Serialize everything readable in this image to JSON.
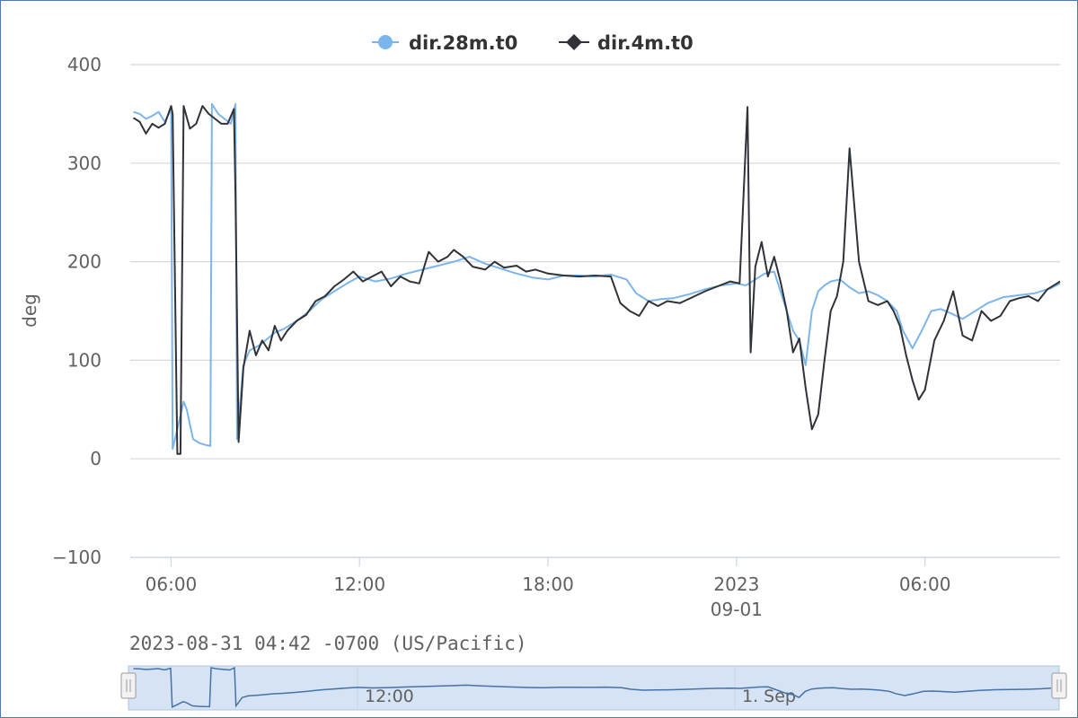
{
  "chart_data": {
    "type": "line",
    "title": "",
    "ylabel": "deg",
    "ylim": [
      -100,
      400
    ],
    "y_ticks": [
      400,
      300,
      200,
      100,
      0,
      -100
    ],
    "x_range_hours": [
      4.7,
      34.3
    ],
    "x_ticks": [
      {
        "hour": 6,
        "label": "06:00",
        "sublabel": ""
      },
      {
        "hour": 12,
        "label": "12:00",
        "sublabel": ""
      },
      {
        "hour": 18,
        "label": "18:00",
        "sublabel": ""
      },
      {
        "hour": 24,
        "label": "2023",
        "sublabel": "09-01"
      },
      {
        "hour": 30,
        "label": "06:00",
        "sublabel": ""
      }
    ],
    "legend_position": "top-center",
    "grid": true,
    "start_time": "2023-08-31 04:42 -0700 (US/Pacific)",
    "series": [
      {
        "name": "dir.28m.t0",
        "color": "#7cb5ec",
        "marker": "circle",
        "x": [
          4.8,
          5.0,
          5.2,
          5.4,
          5.6,
          5.8,
          6.0,
          6.05,
          6.2,
          6.4,
          6.5,
          6.7,
          6.9,
          7.1,
          7.25,
          7.3,
          7.5,
          7.7,
          7.9,
          8.05,
          8.1,
          8.3,
          8.5,
          8.8,
          9.0,
          9.3,
          9.6,
          10.0,
          10.4,
          10.8,
          11.2,
          11.6,
          12.0,
          12.5,
          13.0,
          13.5,
          14.0,
          14.5,
          15.0,
          15.5,
          16.0,
          16.5,
          17.0,
          17.5,
          18.0,
          18.5,
          19.0,
          19.5,
          20.0,
          20.5,
          20.8,
          21.2,
          21.6,
          22.0,
          22.5,
          23.0,
          23.5,
          24.0,
          24.3,
          24.6,
          24.9,
          25.2,
          25.5,
          25.8,
          26.0,
          26.2,
          26.4,
          26.6,
          26.8,
          27.0,
          27.3,
          27.6,
          27.9,
          28.2,
          28.5,
          28.8,
          29.1,
          29.3,
          29.6,
          29.9,
          30.2,
          30.5,
          30.8,
          31.2,
          31.6,
          32.0,
          32.5,
          33.0,
          33.5,
          34.0,
          34.3
        ],
        "values": [
          352,
          350,
          345,
          348,
          352,
          342,
          355,
          10,
          30,
          58,
          50,
          20,
          16,
          14,
          13,
          360,
          350,
          345,
          340,
          360,
          20,
          95,
          110,
          115,
          120,
          128,
          132,
          140,
          150,
          162,
          170,
          178,
          185,
          180,
          183,
          188,
          192,
          196,
          200,
          205,
          198,
          193,
          188,
          184,
          182,
          186,
          186,
          185,
          187,
          182,
          168,
          160,
          162,
          163,
          167,
          172,
          176,
          178,
          176,
          182,
          188,
          190,
          160,
          130,
          120,
          95,
          150,
          170,
          176,
          180,
          182,
          174,
          168,
          170,
          166,
          160,
          150,
          130,
          112,
          130,
          150,
          152,
          148,
          142,
          150,
          158,
          164,
          166,
          168,
          173,
          178
        ]
      },
      {
        "name": "dir.4m.t0",
        "color": "#2f3338",
        "marker": "diamond",
        "x": [
          4.8,
          5.0,
          5.2,
          5.4,
          5.6,
          5.8,
          6.0,
          6.05,
          6.2,
          6.3,
          6.4,
          6.6,
          6.8,
          7.0,
          7.2,
          7.4,
          7.6,
          7.8,
          8.0,
          8.05,
          8.15,
          8.3,
          8.5,
          8.7,
          8.9,
          9.1,
          9.3,
          9.5,
          9.7,
          10.0,
          10.3,
          10.6,
          10.9,
          11.2,
          11.5,
          11.8,
          12.1,
          12.4,
          12.7,
          13.0,
          13.3,
          13.6,
          13.9,
          14.2,
          14.5,
          14.8,
          15.0,
          15.3,
          15.6,
          16.0,
          16.3,
          16.6,
          17.0,
          17.3,
          17.6,
          18.0,
          18.5,
          19.0,
          19.5,
          20.0,
          20.3,
          20.6,
          20.9,
          21.2,
          21.5,
          21.8,
          22.2,
          22.6,
          23.0,
          23.4,
          23.8,
          24.1,
          24.35,
          24.45,
          24.6,
          24.8,
          25.0,
          25.2,
          25.4,
          25.6,
          25.8,
          26.0,
          26.2,
          26.4,
          26.6,
          26.8,
          27.0,
          27.2,
          27.4,
          27.6,
          27.9,
          28.2,
          28.5,
          28.8,
          29.0,
          29.2,
          29.4,
          29.6,
          29.8,
          30.0,
          30.3,
          30.6,
          30.9,
          31.2,
          31.5,
          31.8,
          32.1,
          32.4,
          32.7,
          33.0,
          33.3,
          33.6,
          33.9,
          34.2,
          34.3
        ],
        "values": [
          346,
          342,
          330,
          340,
          336,
          340,
          358,
          350,
          5,
          5,
          358,
          335,
          340,
          358,
          350,
          345,
          340,
          340,
          355,
          270,
          17,
          92,
          130,
          105,
          120,
          110,
          135,
          120,
          130,
          140,
          146,
          160,
          165,
          175,
          182,
          190,
          180,
          185,
          190,
          175,
          185,
          180,
          178,
          210,
          200,
          205,
          212,
          205,
          195,
          192,
          200,
          194,
          196,
          190,
          192,
          188,
          186,
          185,
          186,
          185,
          158,
          150,
          145,
          160,
          155,
          160,
          158,
          164,
          170,
          175,
          180,
          178,
          357,
          108,
          195,
          220,
          185,
          205,
          180,
          150,
          108,
          122,
          72,
          30,
          45,
          100,
          150,
          165,
          200,
          315,
          200,
          160,
          156,
          160,
          150,
          135,
          105,
          80,
          60,
          70,
          120,
          140,
          170,
          125,
          120,
          150,
          140,
          145,
          160,
          163,
          165,
          160,
          172,
          178,
          180
        ]
      }
    ]
  }
}
